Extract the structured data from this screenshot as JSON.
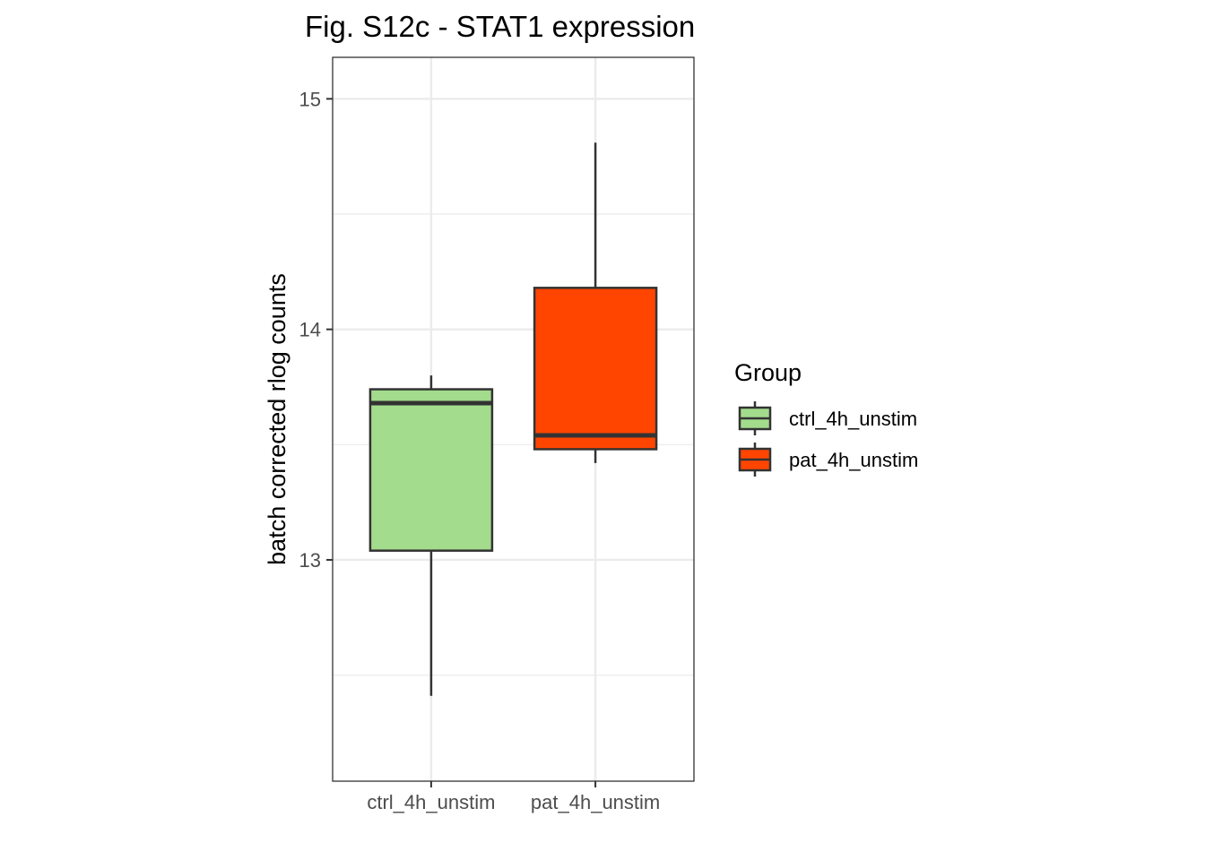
{
  "chart_data": {
    "type": "boxplot",
    "title": "Fig. S12c - STAT1 expression",
    "xlabel": "",
    "ylabel": "batch corrected rlog counts",
    "categories": [
      "ctrl_4h_unstim",
      "pat_4h_unstim"
    ],
    "boxes": [
      {
        "category": "ctrl_4h_unstim",
        "min": 12.41,
        "q1": 13.04,
        "median": 13.68,
        "q3": 13.74,
        "max": 13.8,
        "color": "#a3dc8c"
      },
      {
        "category": "pat_4h_unstim",
        "min": 13.42,
        "q1": 13.48,
        "median": 13.54,
        "q3": 14.18,
        "max": 14.81,
        "color": "#ff4500"
      }
    ],
    "ylim": [
      12.04,
      15.18
    ],
    "yticks": [
      13,
      14,
      15
    ],
    "yticks_minor": [
      12.5,
      13.5,
      14.5
    ],
    "grid": true,
    "legend": {
      "title": "Group",
      "placement": "right",
      "entries": [
        {
          "label": "ctrl_4h_unstim",
          "color": "#a3dc8c"
        },
        {
          "label": "pat_4h_unstim",
          "color": "#ff4500"
        }
      ]
    }
  }
}
